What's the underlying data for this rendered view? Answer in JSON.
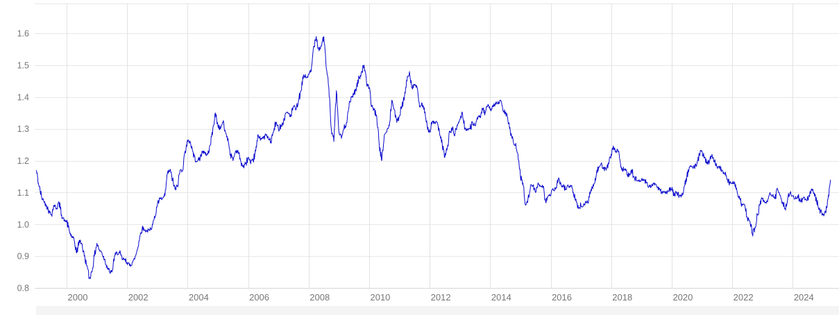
{
  "chart_data": {
    "type": "line",
    "title": "",
    "grid": true,
    "legend": "none",
    "x_axis": {
      "tick_years": [
        2000,
        2002,
        2004,
        2006,
        2008,
        2010,
        2012,
        2014,
        2016,
        2018,
        2020,
        2022,
        2024
      ],
      "tick_labels": [
        "2000",
        "2002",
        "2004",
        "2006",
        "2008",
        "2010",
        "2012",
        "2014",
        "2016",
        "2018",
        "2020",
        "2022",
        "2024"
      ],
      "range_years": [
        1998.945,
        2025.53
      ]
    },
    "y_axis": {
      "tick_values": [
        0.8,
        0.9,
        1.0,
        1.1,
        1.2,
        1.3,
        1.4,
        1.5,
        1.6
      ],
      "tick_labels": [
        "0.8",
        "0.9",
        "1.0",
        "1.1",
        "1.2",
        "1.3",
        "1.4",
        "1.5",
        "1.6"
      ],
      "range": [
        0.8,
        1.694
      ]
    },
    "series": [
      {
        "color": "#0a0acc",
        "frequency": "monthly",
        "start_year": 1999,
        "start_month": 1,
        "end_year": 2025,
        "end_month": 4,
        "values": [
          1.17,
          1.12,
          1.09,
          1.07,
          1.06,
          1.04,
          1.03,
          1.06,
          1.05,
          1.07,
          1.03,
          1.01,
          1.01,
          0.98,
          0.96,
          0.95,
          0.91,
          0.95,
          0.94,
          0.9,
          0.87,
          0.83,
          0.85,
          0.9,
          0.94,
          0.92,
          0.91,
          0.89,
          0.87,
          0.85,
          0.85,
          0.9,
          0.91,
          0.91,
          0.89,
          0.89,
          0.88,
          0.87,
          0.88,
          0.89,
          0.92,
          0.96,
          0.99,
          0.98,
          0.98,
          0.98,
          1.0,
          1.02,
          1.06,
          1.08,
          1.08,
          1.09,
          1.16,
          1.17,
          1.14,
          1.11,
          1.12,
          1.17,
          1.17,
          1.23,
          1.26,
          1.26,
          1.23,
          1.2,
          1.2,
          1.21,
          1.23,
          1.22,
          1.22,
          1.25,
          1.3,
          1.35,
          1.31,
          1.3,
          1.32,
          1.29,
          1.27,
          1.22,
          1.2,
          1.23,
          1.23,
          1.2,
          1.18,
          1.19,
          1.21,
          1.19,
          1.2,
          1.23,
          1.28,
          1.27,
          1.27,
          1.28,
          1.27,
          1.26,
          1.29,
          1.32,
          1.3,
          1.31,
          1.32,
          1.35,
          1.35,
          1.34,
          1.37,
          1.36,
          1.39,
          1.42,
          1.47,
          1.46,
          1.47,
          1.48,
          1.56,
          1.59,
          1.55,
          1.56,
          1.59,
          1.49,
          1.43,
          1.3,
          1.26,
          1.42,
          1.29,
          1.27,
          1.3,
          1.32,
          1.37,
          1.4,
          1.41,
          1.43,
          1.46,
          1.48,
          1.5,
          1.44,
          1.43,
          1.37,
          1.36,
          1.34,
          1.25,
          1.2,
          1.28,
          1.29,
          1.31,
          1.39,
          1.36,
          1.32,
          1.34,
          1.37,
          1.4,
          1.45,
          1.48,
          1.43,
          1.44,
          1.43,
          1.37,
          1.38,
          1.35,
          1.31,
          1.29,
          1.32,
          1.32,
          1.32,
          1.28,
          1.25,
          1.21,
          1.24,
          1.29,
          1.3,
          1.28,
          1.31,
          1.33,
          1.35,
          1.3,
          1.3,
          1.3,
          1.32,
          1.31,
          1.33,
          1.34,
          1.36,
          1.35,
          1.37,
          1.36,
          1.37,
          1.38,
          1.38,
          1.39,
          1.36,
          1.35,
          1.33,
          1.29,
          1.27,
          1.25,
          1.22,
          1.15,
          1.13,
          1.06,
          1.08,
          1.12,
          1.12,
          1.1,
          1.13,
          1.12,
          1.12,
          1.07,
          1.09,
          1.09,
          1.11,
          1.11,
          1.14,
          1.13,
          1.12,
          1.11,
          1.12,
          1.12,
          1.1,
          1.08,
          1.05,
          1.06,
          1.06,
          1.07,
          1.07,
          1.11,
          1.12,
          1.15,
          1.18,
          1.19,
          1.18,
          1.17,
          1.19,
          1.22,
          1.24,
          1.23,
          1.23,
          1.18,
          1.17,
          1.17,
          1.15,
          1.17,
          1.15,
          1.14,
          1.14,
          1.14,
          1.14,
          1.13,
          1.12,
          1.12,
          1.13,
          1.12,
          1.11,
          1.1,
          1.1,
          1.1,
          1.11,
          1.11,
          1.09,
          1.1,
          1.09,
          1.09,
          1.12,
          1.15,
          1.18,
          1.18,
          1.18,
          1.19,
          1.22,
          1.23,
          1.21,
          1.19,
          1.2,
          1.22,
          1.2,
          1.18,
          1.18,
          1.17,
          1.16,
          1.14,
          1.13,
          1.13,
          1.13,
          1.1,
          1.08,
          1.06,
          1.06,
          1.02,
          1.01,
          0.97,
          0.99,
          1.03,
          1.06,
          1.08,
          1.07,
          1.07,
          1.1,
          1.09,
          1.08,
          1.11,
          1.09,
          1.07,
          1.05,
          1.08,
          1.1,
          1.09,
          1.08,
          1.09,
          1.07,
          1.08,
          1.08,
          1.08,
          1.1,
          1.11,
          1.09,
          1.06,
          1.04,
          1.03,
          1.04,
          1.08,
          1.14
        ]
      }
    ]
  },
  "colors": {
    "background": "#ffffff",
    "line": "#0a0acc",
    "grid_horizontal": "#e7e7e7",
    "grid_vertical": "#e2e2e2",
    "plot_border_top": "#e7e7e7",
    "axis_bottom": "#d6d6d6",
    "tick_text": "#767676",
    "scrollbar_track": "#f4f4f4"
  }
}
